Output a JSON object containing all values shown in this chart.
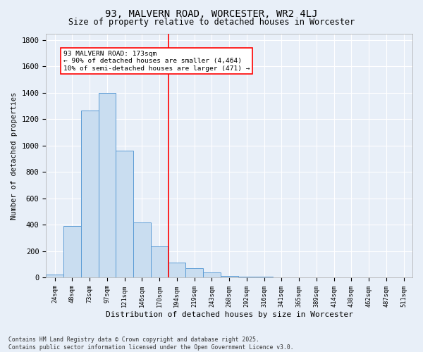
{
  "title": "93, MALVERN ROAD, WORCESTER, WR2 4LJ",
  "subtitle": "Size of property relative to detached houses in Worcester",
  "xlabel": "Distribution of detached houses by size in Worcester",
  "ylabel": "Number of detached properties",
  "bin_labels": [
    "24sqm",
    "48sqm",
    "73sqm",
    "97sqm",
    "121sqm",
    "146sqm",
    "170sqm",
    "194sqm",
    "219sqm",
    "243sqm",
    "268sqm",
    "292sqm",
    "316sqm",
    "341sqm",
    "365sqm",
    "389sqm",
    "414sqm",
    "438sqm",
    "462sqm",
    "487sqm",
    "511sqm"
  ],
  "bar_values": [
    25,
    390,
    1265,
    1400,
    960,
    420,
    235,
    115,
    70,
    40,
    15,
    8,
    5,
    3,
    2,
    1,
    1,
    0,
    0,
    0,
    0
  ],
  "bar_color": "#c9ddf0",
  "bar_edge_color": "#5b9bd5",
  "red_line_x": 6.5,
  "annotation_line1": "93 MALVERN ROAD: 173sqm",
  "annotation_line2": "← 90% of detached houses are smaller (4,464)",
  "annotation_line3": "10% of semi-detached houses are larger (471) →",
  "ylim": [
    0,
    1850
  ],
  "yticks": [
    0,
    200,
    400,
    600,
    800,
    1000,
    1200,
    1400,
    1600,
    1800
  ],
  "bg_color": "#e8eff8",
  "grid_color": "#ffffff",
  "footnote1": "Contains HM Land Registry data © Crown copyright and database right 2025.",
  "footnote2": "Contains public sector information licensed under the Open Government Licence v3.0."
}
